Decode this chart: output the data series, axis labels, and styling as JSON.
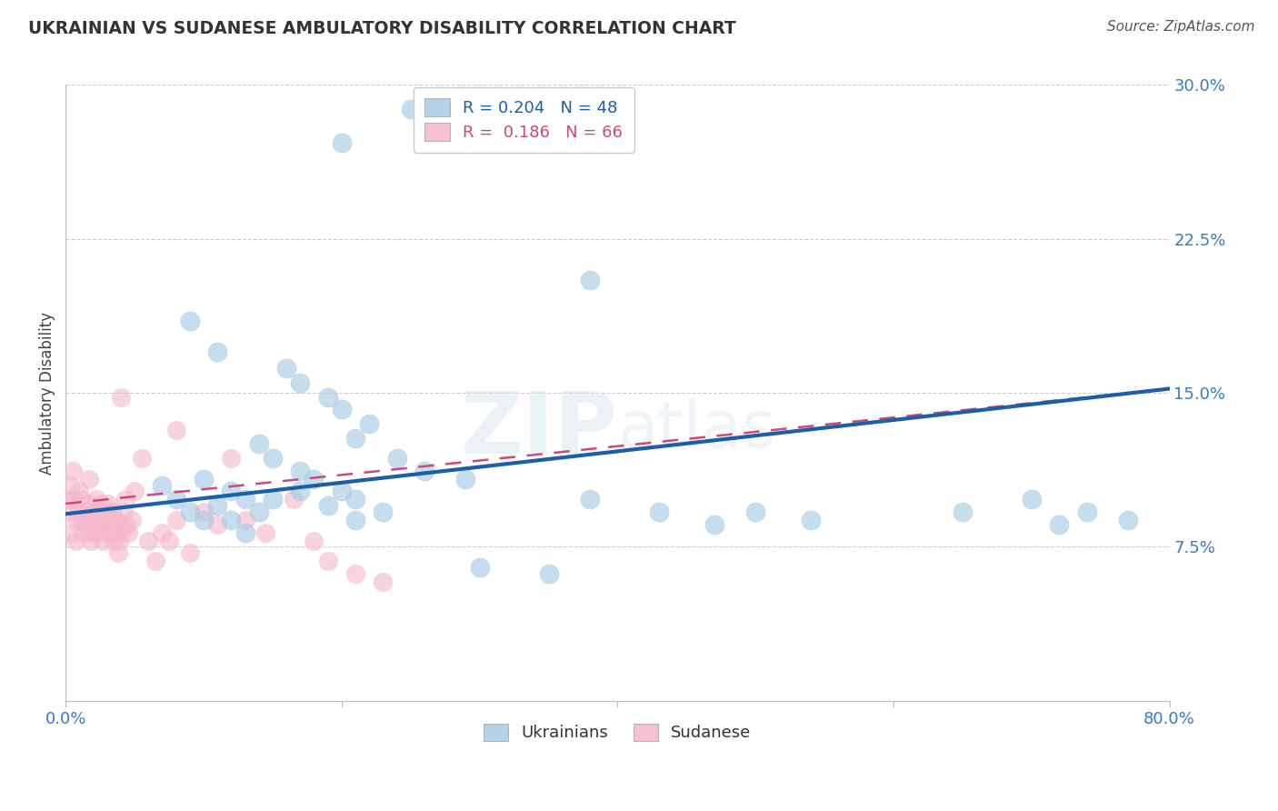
{
  "title": "UKRAINIAN VS SUDANESE AMBULATORY DISABILITY CORRELATION CHART",
  "source": "Source: ZipAtlas.com",
  "ylabel": "Ambulatory Disability",
  "xlim": [
    0.0,
    0.8
  ],
  "ylim": [
    0.0,
    0.3
  ],
  "xtick_vals": [
    0.0,
    0.2,
    0.4,
    0.6,
    0.8
  ],
  "xtick_labels": [
    "0.0%",
    "",
    "",
    "",
    "80.0%"
  ],
  "ytick_vals": [
    0.075,
    0.15,
    0.225,
    0.3
  ],
  "ytick_labels": [
    "7.5%",
    "15.0%",
    "22.5%",
    "30.0%"
  ],
  "background_color": "#ffffff",
  "grid_color": "#c8c8c8",
  "legend_R_blue": "0.204",
  "legend_N_blue": "48",
  "legend_R_pink": "0.186",
  "legend_N_pink": "66",
  "blue_color": "#a8cce4",
  "blue_edge_color": "#a8cce4",
  "pink_color": "#f5b8cb",
  "pink_edge_color": "#f5b8cb",
  "blue_line_color": "#1a5fa8",
  "pink_line_color": "#d04878",
  "blue_line_x0": 0.0,
  "blue_line_y0": 0.091,
  "blue_line_x1": 0.8,
  "blue_line_y1": 0.152,
  "pink_line_x0": 0.0,
  "pink_line_y0": 0.096,
  "pink_line_x1": 0.8,
  "pink_line_y1": 0.152,
  "blue_x": [
    0.2,
    0.25,
    0.38,
    0.09,
    0.11,
    0.16,
    0.17,
    0.19,
    0.2,
    0.22,
    0.21,
    0.24,
    0.26,
    0.29,
    0.14,
    0.15,
    0.17,
    0.18,
    0.2,
    0.21,
    0.23,
    0.1,
    0.12,
    0.13,
    0.14,
    0.15,
    0.17,
    0.19,
    0.21,
    0.07,
    0.08,
    0.09,
    0.1,
    0.11,
    0.12,
    0.13,
    0.38,
    0.43,
    0.47,
    0.5,
    0.54,
    0.65,
    0.7,
    0.72,
    0.74,
    0.77,
    0.3,
    0.35
  ],
  "blue_y": [
    0.272,
    0.288,
    0.205,
    0.185,
    0.17,
    0.162,
    0.155,
    0.148,
    0.142,
    0.135,
    0.128,
    0.118,
    0.112,
    0.108,
    0.125,
    0.118,
    0.112,
    0.108,
    0.102,
    0.098,
    0.092,
    0.108,
    0.102,
    0.098,
    0.092,
    0.098,
    0.102,
    0.095,
    0.088,
    0.105,
    0.098,
    0.092,
    0.088,
    0.095,
    0.088,
    0.082,
    0.098,
    0.092,
    0.086,
    0.092,
    0.088,
    0.092,
    0.098,
    0.086,
    0.092,
    0.088,
    0.065,
    0.062
  ],
  "pink_x": [
    0.001,
    0.002,
    0.003,
    0.004,
    0.005,
    0.006,
    0.007,
    0.008,
    0.009,
    0.01,
    0.011,
    0.012,
    0.013,
    0.014,
    0.015,
    0.016,
    0.017,
    0.018,
    0.019,
    0.02,
    0.021,
    0.022,
    0.023,
    0.024,
    0.025,
    0.026,
    0.027,
    0.028,
    0.029,
    0.03,
    0.031,
    0.032,
    0.033,
    0.034,
    0.035,
    0.036,
    0.037,
    0.038,
    0.039,
    0.04,
    0.041,
    0.042,
    0.043,
    0.044,
    0.045,
    0.048,
    0.05,
    0.055,
    0.06,
    0.065,
    0.07,
    0.075,
    0.08,
    0.09,
    0.1,
    0.11,
    0.13,
    0.145,
    0.165,
    0.18,
    0.19,
    0.21,
    0.23,
    0.08,
    0.12,
    0.04
  ],
  "pink_y": [
    0.092,
    0.098,
    0.105,
    0.082,
    0.112,
    0.098,
    0.078,
    0.088,
    0.092,
    0.102,
    0.098,
    0.088,
    0.082,
    0.092,
    0.086,
    0.096,
    0.108,
    0.078,
    0.082,
    0.088,
    0.092,
    0.098,
    0.082,
    0.086,
    0.092,
    0.096,
    0.078,
    0.082,
    0.086,
    0.092,
    0.096,
    0.082,
    0.088,
    0.092,
    0.078,
    0.082,
    0.088,
    0.072,
    0.078,
    0.082,
    0.086,
    0.092,
    0.098,
    0.086,
    0.082,
    0.088,
    0.102,
    0.118,
    0.078,
    0.068,
    0.082,
    0.078,
    0.088,
    0.072,
    0.092,
    0.086,
    0.088,
    0.082,
    0.098,
    0.078,
    0.068,
    0.062,
    0.058,
    0.132,
    0.118,
    0.148
  ]
}
